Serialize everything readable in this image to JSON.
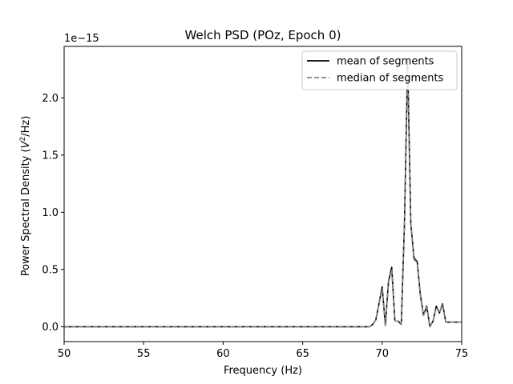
{
  "chart_data": {
    "type": "line",
    "title": "Welch PSD (POz, Epoch 0)",
    "xlabel": "Frequency (Hz)",
    "ylabel_main": "Power Spectral Density (",
    "ylabel_var": "V",
    "ylabel_sup": "2",
    "ylabel_tail": "/Hz)",
    "y_offset_label": "1e−15",
    "xlim": [
      50,
      75
    ],
    "ylim": [
      -0.13,
      2.45
    ],
    "y_scale_note": "values in units of 1e-15",
    "x_ticks": [
      50,
      55,
      60,
      65,
      70,
      75
    ],
    "x_tick_labels": [
      "50",
      "55",
      "60",
      "65",
      "70",
      "75"
    ],
    "y_ticks": [
      0.0,
      0.5,
      1.0,
      1.5,
      2.0
    ],
    "y_tick_labels": [
      "0.0",
      "0.5",
      "1.0",
      "1.5",
      "2.0"
    ],
    "legend_position": "top-right",
    "x": [
      50,
      69.0,
      69.2,
      69.4,
      69.6,
      69.8,
      70.0,
      70.2,
      70.4,
      70.6,
      70.8,
      71.0,
      71.2,
      71.4,
      71.6,
      71.8,
      72.0,
      72.2,
      72.4,
      72.6,
      72.8,
      73.0,
      73.2,
      73.4,
      73.6,
      73.8,
      74.0,
      74.2,
      74.4,
      74.6,
      74.8,
      75.0
    ],
    "series": [
      {
        "name": "mean of segments",
        "color": "#000000",
        "style": "solid",
        "values": [
          0.0,
          0.0,
          0.0,
          0.02,
          0.06,
          0.2,
          0.35,
          0.01,
          0.4,
          0.52,
          0.05,
          0.05,
          0.02,
          0.9,
          2.33,
          0.9,
          0.6,
          0.57,
          0.28,
          0.1,
          0.18,
          0.0,
          0.05,
          0.18,
          0.12,
          0.2,
          0.04,
          0.04,
          0.04,
          0.04,
          0.04,
          0.04
        ]
      },
      {
        "name": "median of segments",
        "color": "#808080",
        "style": "dashed",
        "values": [
          0.0,
          0.0,
          0.0,
          0.02,
          0.06,
          0.2,
          0.33,
          0.01,
          0.39,
          0.5,
          0.05,
          0.05,
          0.02,
          0.88,
          2.25,
          0.89,
          0.59,
          0.56,
          0.27,
          0.1,
          0.17,
          0.0,
          0.05,
          0.17,
          0.12,
          0.19,
          0.04,
          0.04,
          0.04,
          0.04,
          0.04,
          0.04
        ]
      }
    ]
  }
}
